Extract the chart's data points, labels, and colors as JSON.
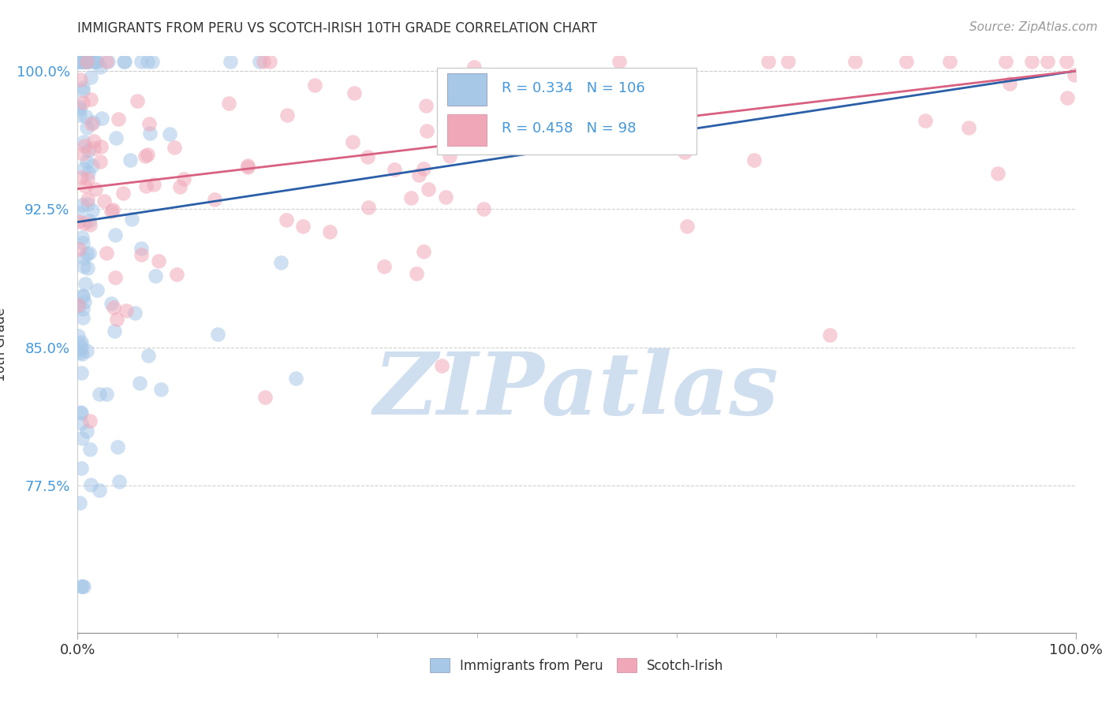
{
  "title": "IMMIGRANTS FROM PERU VS SCOTCH-IRISH 10TH GRADE CORRELATION CHART",
  "source_text": "Source: ZipAtlas.com",
  "ylabel": "10th Grade",
  "legend_label1": "Immigrants from Peru",
  "legend_label2": "Scotch-Irish",
  "r1": 0.334,
  "n1": 106,
  "r2": 0.458,
  "n2": 98,
  "color1": "#A8C8E8",
  "color2": "#F0A8B8",
  "trendline_color1": "#2A5FA8",
  "trendline_color2": "#D86080",
  "tick_color": "#4499DD",
  "watermark_color": "#D0DFF0",
  "watermark_text": "ZIPatlas",
  "xmin": 0.0,
  "xmax": 1.0,
  "ymin": 0.695,
  "ymax": 1.008,
  "yticks": [
    0.775,
    0.85,
    0.925,
    1.0
  ],
  "ytick_labels": [
    "77.5%",
    "85.0%",
    "92.5%",
    "100.0%"
  ],
  "xticks": [
    0.0,
    1.0
  ],
  "xtick_labels": [
    "0.0%",
    "100.0%"
  ],
  "blue_trendline_x0": 0.0,
  "blue_trendline_y0": 0.918,
  "blue_trendline_x1": 1.0,
  "blue_trendline_y1": 1.0,
  "pink_trendline_x0": 0.0,
  "pink_trendline_y0": 0.936,
  "pink_trendline_x1": 1.0,
  "pink_trendline_y1": 1.0
}
